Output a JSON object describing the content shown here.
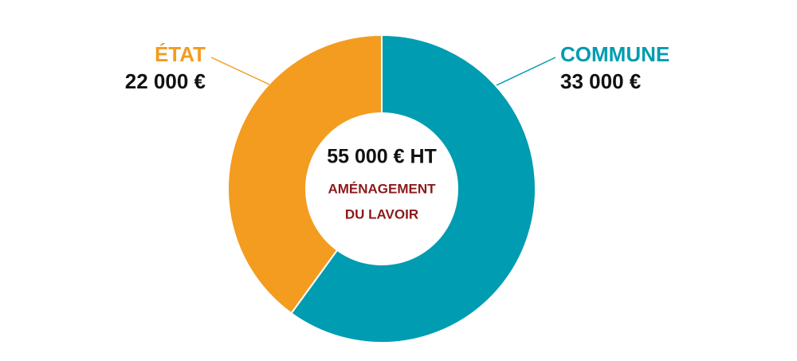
{
  "chart_data": {
    "type": "pie",
    "categories": [
      "ÉTAT",
      "COMMUNE"
    ],
    "values": [
      22000,
      33000
    ],
    "value_labels": [
      "22 000 €",
      "33 000 €"
    ],
    "colors": [
      "#f39c1f",
      "#009cb1"
    ],
    "center_total": "55 000 € HT",
    "center_title": [
      "AMÉNAGEMENT",
      "DU LAVOIR"
    ]
  }
}
